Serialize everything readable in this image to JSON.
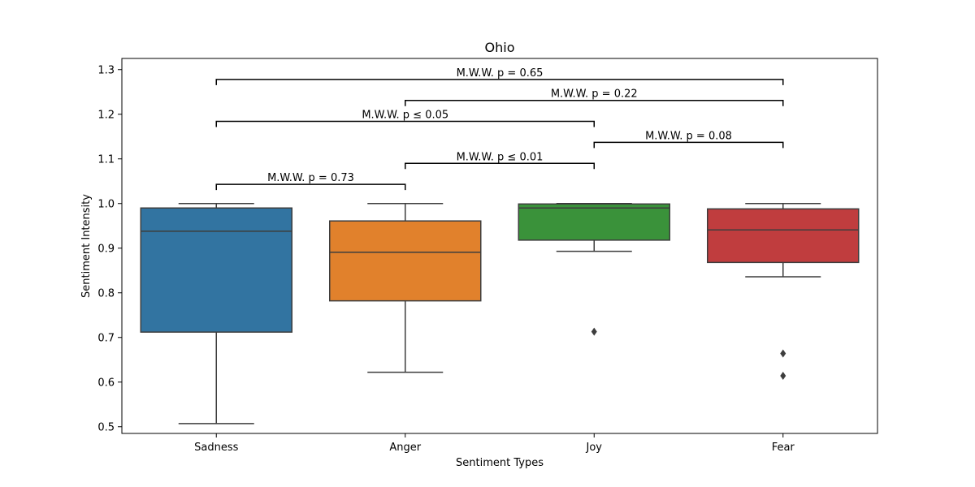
{
  "chart_data": {
    "type": "box",
    "title": "Ohio",
    "xlabel": "Sentiment Types",
    "ylabel": "Sentiment Intensity",
    "ylim": [
      0.485,
      1.325
    ],
    "yticks": [
      "0.5",
      "0.6",
      "0.7",
      "0.8",
      "0.9",
      "1.0",
      "1.1",
      "1.2",
      "1.3"
    ],
    "grid": false,
    "categories": [
      "Sadness",
      "Anger",
      "Joy",
      "Fear"
    ],
    "boxes": [
      {
        "category": "Sadness",
        "color": "#3274a1",
        "whisker_low": 0.507,
        "q1": 0.712,
        "median": 0.938,
        "q3": 0.99,
        "whisker_high": 1.0,
        "outliers": []
      },
      {
        "category": "Anger",
        "color": "#e1812c",
        "whisker_low": 0.622,
        "q1": 0.782,
        "median": 0.891,
        "q3": 0.961,
        "whisker_high": 1.0,
        "outliers": []
      },
      {
        "category": "Joy",
        "color": "#3a923a",
        "whisker_low": 0.893,
        "q1": 0.918,
        "median": 0.99,
        "q3": 0.999,
        "whisker_high": 1.0,
        "outliers": [
          0.713
        ]
      },
      {
        "category": "Fear",
        "color": "#c03d3e",
        "whisker_low": 0.836,
        "q1": 0.868,
        "median": 0.941,
        "q3": 0.988,
        "whisker_high": 1.0,
        "outliers": [
          0.664,
          0.614
        ]
      }
    ],
    "annotations": [
      {
        "from": "Sadness",
        "to": "Anger",
        "y": 1.043,
        "text": "M.W.W. p = 0.73"
      },
      {
        "from": "Anger",
        "to": "Joy",
        "y": 1.09,
        "text": "M.W.W. p ≤ 0.01"
      },
      {
        "from": "Joy",
        "to": "Fear",
        "y": 1.137,
        "text": "M.W.W. p = 0.08"
      },
      {
        "from": "Sadness",
        "to": "Joy",
        "y": 1.184,
        "text": "M.W.W. p ≤ 0.05"
      },
      {
        "from": "Anger",
        "to": "Fear",
        "y": 1.231,
        "text": "M.W.W. p = 0.22"
      },
      {
        "from": "Sadness",
        "to": "Fear",
        "y": 1.278,
        "text": "M.W.W. p = 0.65"
      }
    ]
  }
}
